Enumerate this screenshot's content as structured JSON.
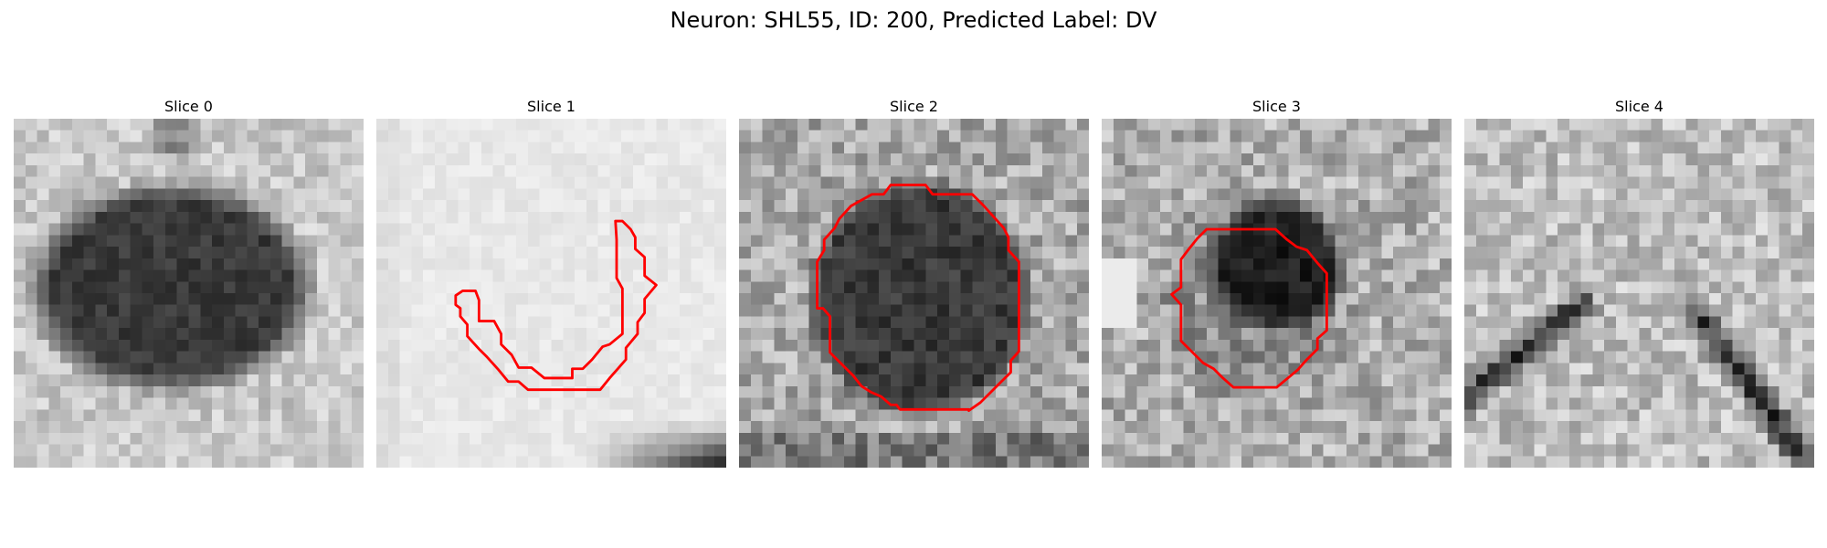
{
  "figure": {
    "title": "Neuron: SHL55, ID: 200, Predicted Label: DV"
  },
  "colors": {
    "contour": "#ff0000",
    "background": "#ffffff",
    "colormap": "grayscale"
  },
  "panels": [
    {
      "title": "Slice 0",
      "has_contour": false
    },
    {
      "title": "Slice 1",
      "has_contour": true
    },
    {
      "title": "Slice 2",
      "has_contour": true
    },
    {
      "title": "Slice 3",
      "has_contour": true
    },
    {
      "title": "Slice 4",
      "has_contour": false
    }
  ]
}
